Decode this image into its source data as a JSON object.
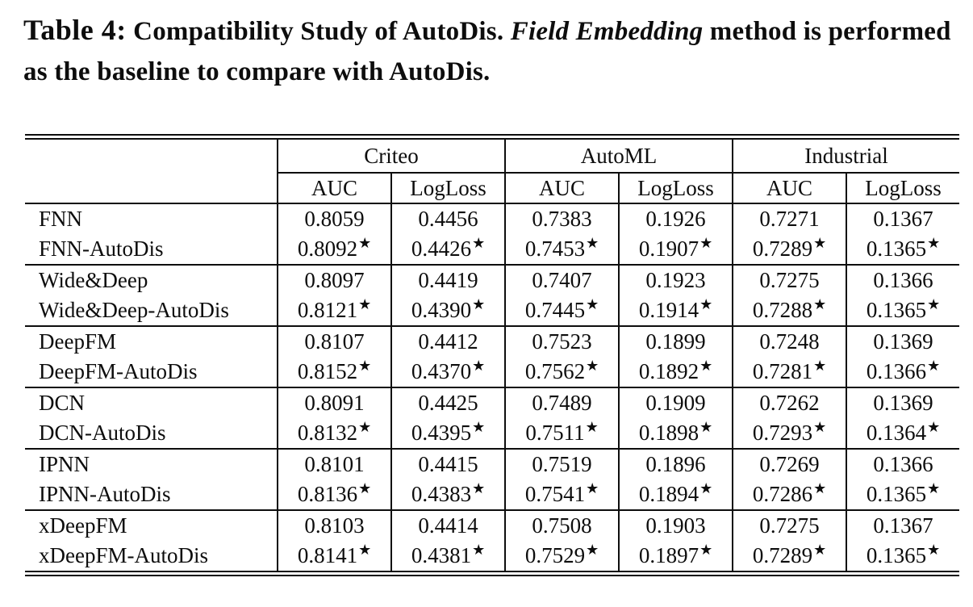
{
  "caption": {
    "label": "Table 4:",
    "part1": "Compatibility Study of AutoDis.",
    "italic": "Field Embedding",
    "part2": "method is performed as the baseline to compare with AutoDis."
  },
  "table": {
    "groups": [
      {
        "label": "Criteo"
      },
      {
        "label": "AutoML"
      },
      {
        "label": "Industrial"
      }
    ],
    "subheaders": [
      "AUC",
      "LogLoss",
      "AUC",
      "LogLoss",
      "AUC",
      "LogLoss"
    ],
    "star": "★",
    "rows": [
      {
        "model": "FNN",
        "starred": false,
        "values": [
          "0.8059",
          "0.4456",
          "0.7383",
          "0.1926",
          "0.7271",
          "0.1367"
        ]
      },
      {
        "model": "FNN-AutoDis",
        "starred": true,
        "values": [
          "0.8092",
          "0.4426",
          "0.7453",
          "0.1907",
          "0.7289",
          "0.1365"
        ]
      },
      {
        "model": "Wide&Deep",
        "starred": false,
        "values": [
          "0.8097",
          "0.4419",
          "0.7407",
          "0.1923",
          "0.7275",
          "0.1366"
        ]
      },
      {
        "model": "Wide&Deep-AutoDis",
        "starred": true,
        "values": [
          "0.8121",
          "0.4390",
          "0.7445",
          "0.1914",
          "0.7288",
          "0.1365"
        ]
      },
      {
        "model": "DeepFM",
        "starred": false,
        "values": [
          "0.8107",
          "0.4412",
          "0.7523",
          "0.1899",
          "0.7248",
          "0.1369"
        ]
      },
      {
        "model": "DeepFM-AutoDis",
        "starred": true,
        "values": [
          "0.8152",
          "0.4370",
          "0.7562",
          "0.1892",
          "0.7281",
          "0.1366"
        ]
      },
      {
        "model": "DCN",
        "starred": false,
        "values": [
          "0.8091",
          "0.4425",
          "0.7489",
          "0.1909",
          "0.7262",
          "0.1369"
        ]
      },
      {
        "model": "DCN-AutoDis",
        "starred": true,
        "values": [
          "0.8132",
          "0.4395",
          "0.7511",
          "0.1898",
          "0.7293",
          "0.1364"
        ]
      },
      {
        "model": "IPNN",
        "starred": false,
        "values": [
          "0.8101",
          "0.4415",
          "0.7519",
          "0.1896",
          "0.7269",
          "0.1366"
        ]
      },
      {
        "model": "IPNN-AutoDis",
        "starred": true,
        "values": [
          "0.8136",
          "0.4383",
          "0.7541",
          "0.1894",
          "0.7286",
          "0.1365"
        ]
      },
      {
        "model": "xDeepFM",
        "starred": false,
        "values": [
          "0.8103",
          "0.4414",
          "0.7508",
          "0.1903",
          "0.7275",
          "0.1367"
        ]
      },
      {
        "model": "xDeepFM-AutoDis",
        "starred": true,
        "values": [
          "0.8141",
          "0.4381",
          "0.7529",
          "0.1897",
          "0.7289",
          "0.1365"
        ]
      }
    ]
  }
}
